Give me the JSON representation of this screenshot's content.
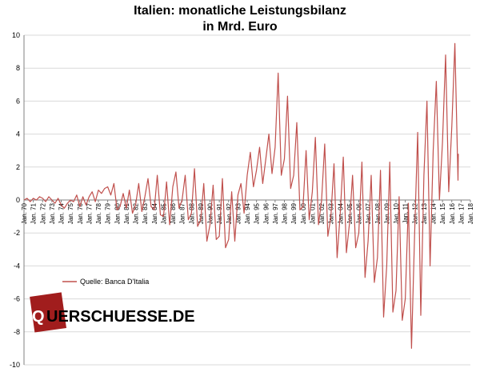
{
  "chart_data": {
    "type": "line",
    "title_line1": "Italien: monatliche Leistungsbilanz",
    "title_line2": "in Mrd. Euro",
    "xlabel": "",
    "ylabel": "",
    "ylim": [
      -10,
      10
    ],
    "yticks": [
      10,
      8,
      6,
      4,
      2,
      0,
      -2,
      -4,
      -6,
      -8,
      -10
    ],
    "x_ticks": [
      "Jan. 70",
      "Jan. 71",
      "Jan. 72",
      "Jan. 73",
      "Jan. 74",
      "Jan. 75",
      "Jan. 76",
      "Jan. 77",
      "Jan. 78",
      "Jan. 79",
      "Jan. 80",
      "Jan. 81",
      "Jan. 82",
      "Jan. 83",
      "Jan. 84",
      "Jan. 85",
      "Jan. 86",
      "Jan. 87",
      "Jan. 88",
      "Jan. 89",
      "Jan. 90",
      "Jan. 91",
      "Jan. 92",
      "Jan. 93",
      "Jan. 94",
      "Jan. 95",
      "Jan. 96",
      "Jan. 97",
      "Jan. 98",
      "Jan. 99",
      "Jan. 00",
      "Jan. 01",
      "Jan. 02",
      "Jan. 03",
      "Jan. 04",
      "Jan. 05",
      "Jan. 06",
      "Jan. 07",
      "Jan. 08",
      "Jan. 09",
      "Jan. 10",
      "Jan. 11",
      "Jan. 12",
      "Jan. 13",
      "Jan. 14",
      "Jan. 15",
      "Jan. 16",
      "Jan. 17",
      "Jan. 18"
    ],
    "grid": true,
    "legend": "left-middle",
    "series": [
      {
        "name": "Quelle: Banca D'Italia",
        "color": "#c0504d",
        "annual_points": [
          {
            "year": 1970,
            "values": [
              0.0,
              0.1,
              -0.1
            ]
          },
          {
            "year": 1971,
            "values": [
              0.1,
              0.0,
              0.2
            ]
          },
          {
            "year": 1972,
            "values": [
              0.1,
              -0.1,
              0.2
            ]
          },
          {
            "year": 1973,
            "values": [
              0.0,
              -0.2,
              0.1
            ]
          },
          {
            "year": 1974,
            "values": [
              -0.3,
              -0.5,
              -0.2
            ]
          },
          {
            "year": 1975,
            "values": [
              0.0,
              -0.1,
              0.3
            ]
          },
          {
            "year": 1976,
            "values": [
              -0.4,
              0.2,
              -0.3
            ]
          },
          {
            "year": 1977,
            "values": [
              0.2,
              0.5,
              -0.1
            ]
          },
          {
            "year": 1978,
            "values": [
              0.6,
              0.4,
              0.7
            ]
          },
          {
            "year": 1979,
            "values": [
              0.8,
              0.3,
              1.0
            ]
          },
          {
            "year": 1980,
            "values": [
              -0.6,
              -0.4,
              0.4
            ]
          },
          {
            "year": 1981,
            "values": [
              -0.5,
              0.6,
              -0.8
            ]
          },
          {
            "year": 1982,
            "values": [
              -0.3,
              1.0,
              -0.7
            ]
          },
          {
            "year": 1983,
            "values": [
              0.2,
              1.3,
              -0.4
            ]
          },
          {
            "year": 1984,
            "values": [
              -0.6,
              1.5,
              -0.9
            ]
          },
          {
            "year": 1985,
            "values": [
              -1.0,
              1.1,
              -1.5
            ]
          },
          {
            "year": 1986,
            "values": [
              0.8,
              1.7,
              -0.5
            ]
          },
          {
            "year": 1987,
            "values": [
              0.0,
              1.5,
              -1.2
            ]
          },
          {
            "year": 1988,
            "values": [
              -0.8,
              1.9,
              -1.6
            ]
          },
          {
            "year": 1989,
            "values": [
              -1.2,
              1.0,
              -2.5
            ]
          },
          {
            "year": 1990,
            "values": [
              -1.5,
              0.9,
              -2.4
            ]
          },
          {
            "year": 1991,
            "values": [
              -2.2,
              1.3,
              -2.9
            ]
          },
          {
            "year": 1992,
            "values": [
              -2.4,
              0.5,
              -2.5
            ]
          },
          {
            "year": 1993,
            "values": [
              0.3,
              1.0,
              -0.8
            ]
          },
          {
            "year": 1994,
            "values": [
              1.5,
              2.9,
              0.8
            ]
          },
          {
            "year": 1995,
            "values": [
              1.8,
              3.2,
              1.0
            ]
          },
          {
            "year": 1996,
            "values": [
              2.5,
              4.0,
              1.6
            ]
          },
          {
            "year": 1997,
            "values": [
              3.2,
              7.7,
              1.5
            ]
          },
          {
            "year": 1998,
            "values": [
              2.5,
              6.3,
              0.7
            ]
          },
          {
            "year": 1999,
            "values": [
              1.5,
              4.7,
              -0.6
            ]
          },
          {
            "year": 2000,
            "values": [
              -0.4,
              3.0,
              -1.2
            ]
          },
          {
            "year": 2001,
            "values": [
              0.5,
              3.8,
              -1.5
            ]
          },
          {
            "year": 2002,
            "values": [
              0.0,
              3.4,
              -2.2
            ]
          },
          {
            "year": 2003,
            "values": [
              -1.0,
              2.2,
              -3.5
            ]
          },
          {
            "year": 2004,
            "values": [
              -0.8,
              2.6,
              -3.2
            ]
          },
          {
            "year": 2005,
            "values": [
              -1.4,
              1.5,
              -2.9
            ]
          },
          {
            "year": 2006,
            "values": [
              -2.0,
              2.3,
              -4.7
            ]
          },
          {
            "year": 2007,
            "values": [
              -2.5,
              1.5,
              -5.0
            ]
          },
          {
            "year": 2008,
            "values": [
              -3.5,
              1.8,
              -7.1
            ]
          },
          {
            "year": 2009,
            "values": [
              -4.0,
              2.3,
              -6.8
            ]
          },
          {
            "year": 2010,
            "values": [
              -5.5,
              0.2,
              -7.3
            ]
          },
          {
            "year": 2011,
            "values": [
              -6.0,
              -0.2,
              -9.0
            ]
          },
          {
            "year": 2012,
            "values": [
              -2.0,
              4.1,
              -7.0
            ]
          },
          {
            "year": 2013,
            "values": [
              1.5,
              6.0,
              -4.0
            ]
          },
          {
            "year": 2014,
            "values": [
              3.0,
              7.2,
              0.0
            ]
          },
          {
            "year": 2015,
            "values": [
              3.5,
              8.8,
              0.5
            ]
          },
          {
            "year": 2016,
            "values": [
              4.5,
              9.5,
              1.2
            ]
          },
          {
            "year": 2016.7,
            "values": [
              2.8
            ]
          }
        ]
      }
    ]
  },
  "legend": {
    "label": "Quelle: Banca D'Italia"
  },
  "logo": {
    "text": "QUERSCHUESSE.DE",
    "highlight_color": "#a11d1d"
  }
}
